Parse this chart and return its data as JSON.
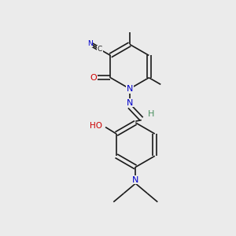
{
  "bg_color": "#ebebeb",
  "bond_color": "#1a1a1a",
  "N_color": "#0000cc",
  "O_color": "#cc0000",
  "H_color": "#4a9060",
  "C_color": "#1a1a1a",
  "font_size": 8.0,
  "line_width": 1.2,
  "figsize": [
    3.0,
    3.0
  ],
  "dpi": 100,
  "xlim": [
    0,
    10
  ],
  "ylim": [
    0,
    10
  ]
}
